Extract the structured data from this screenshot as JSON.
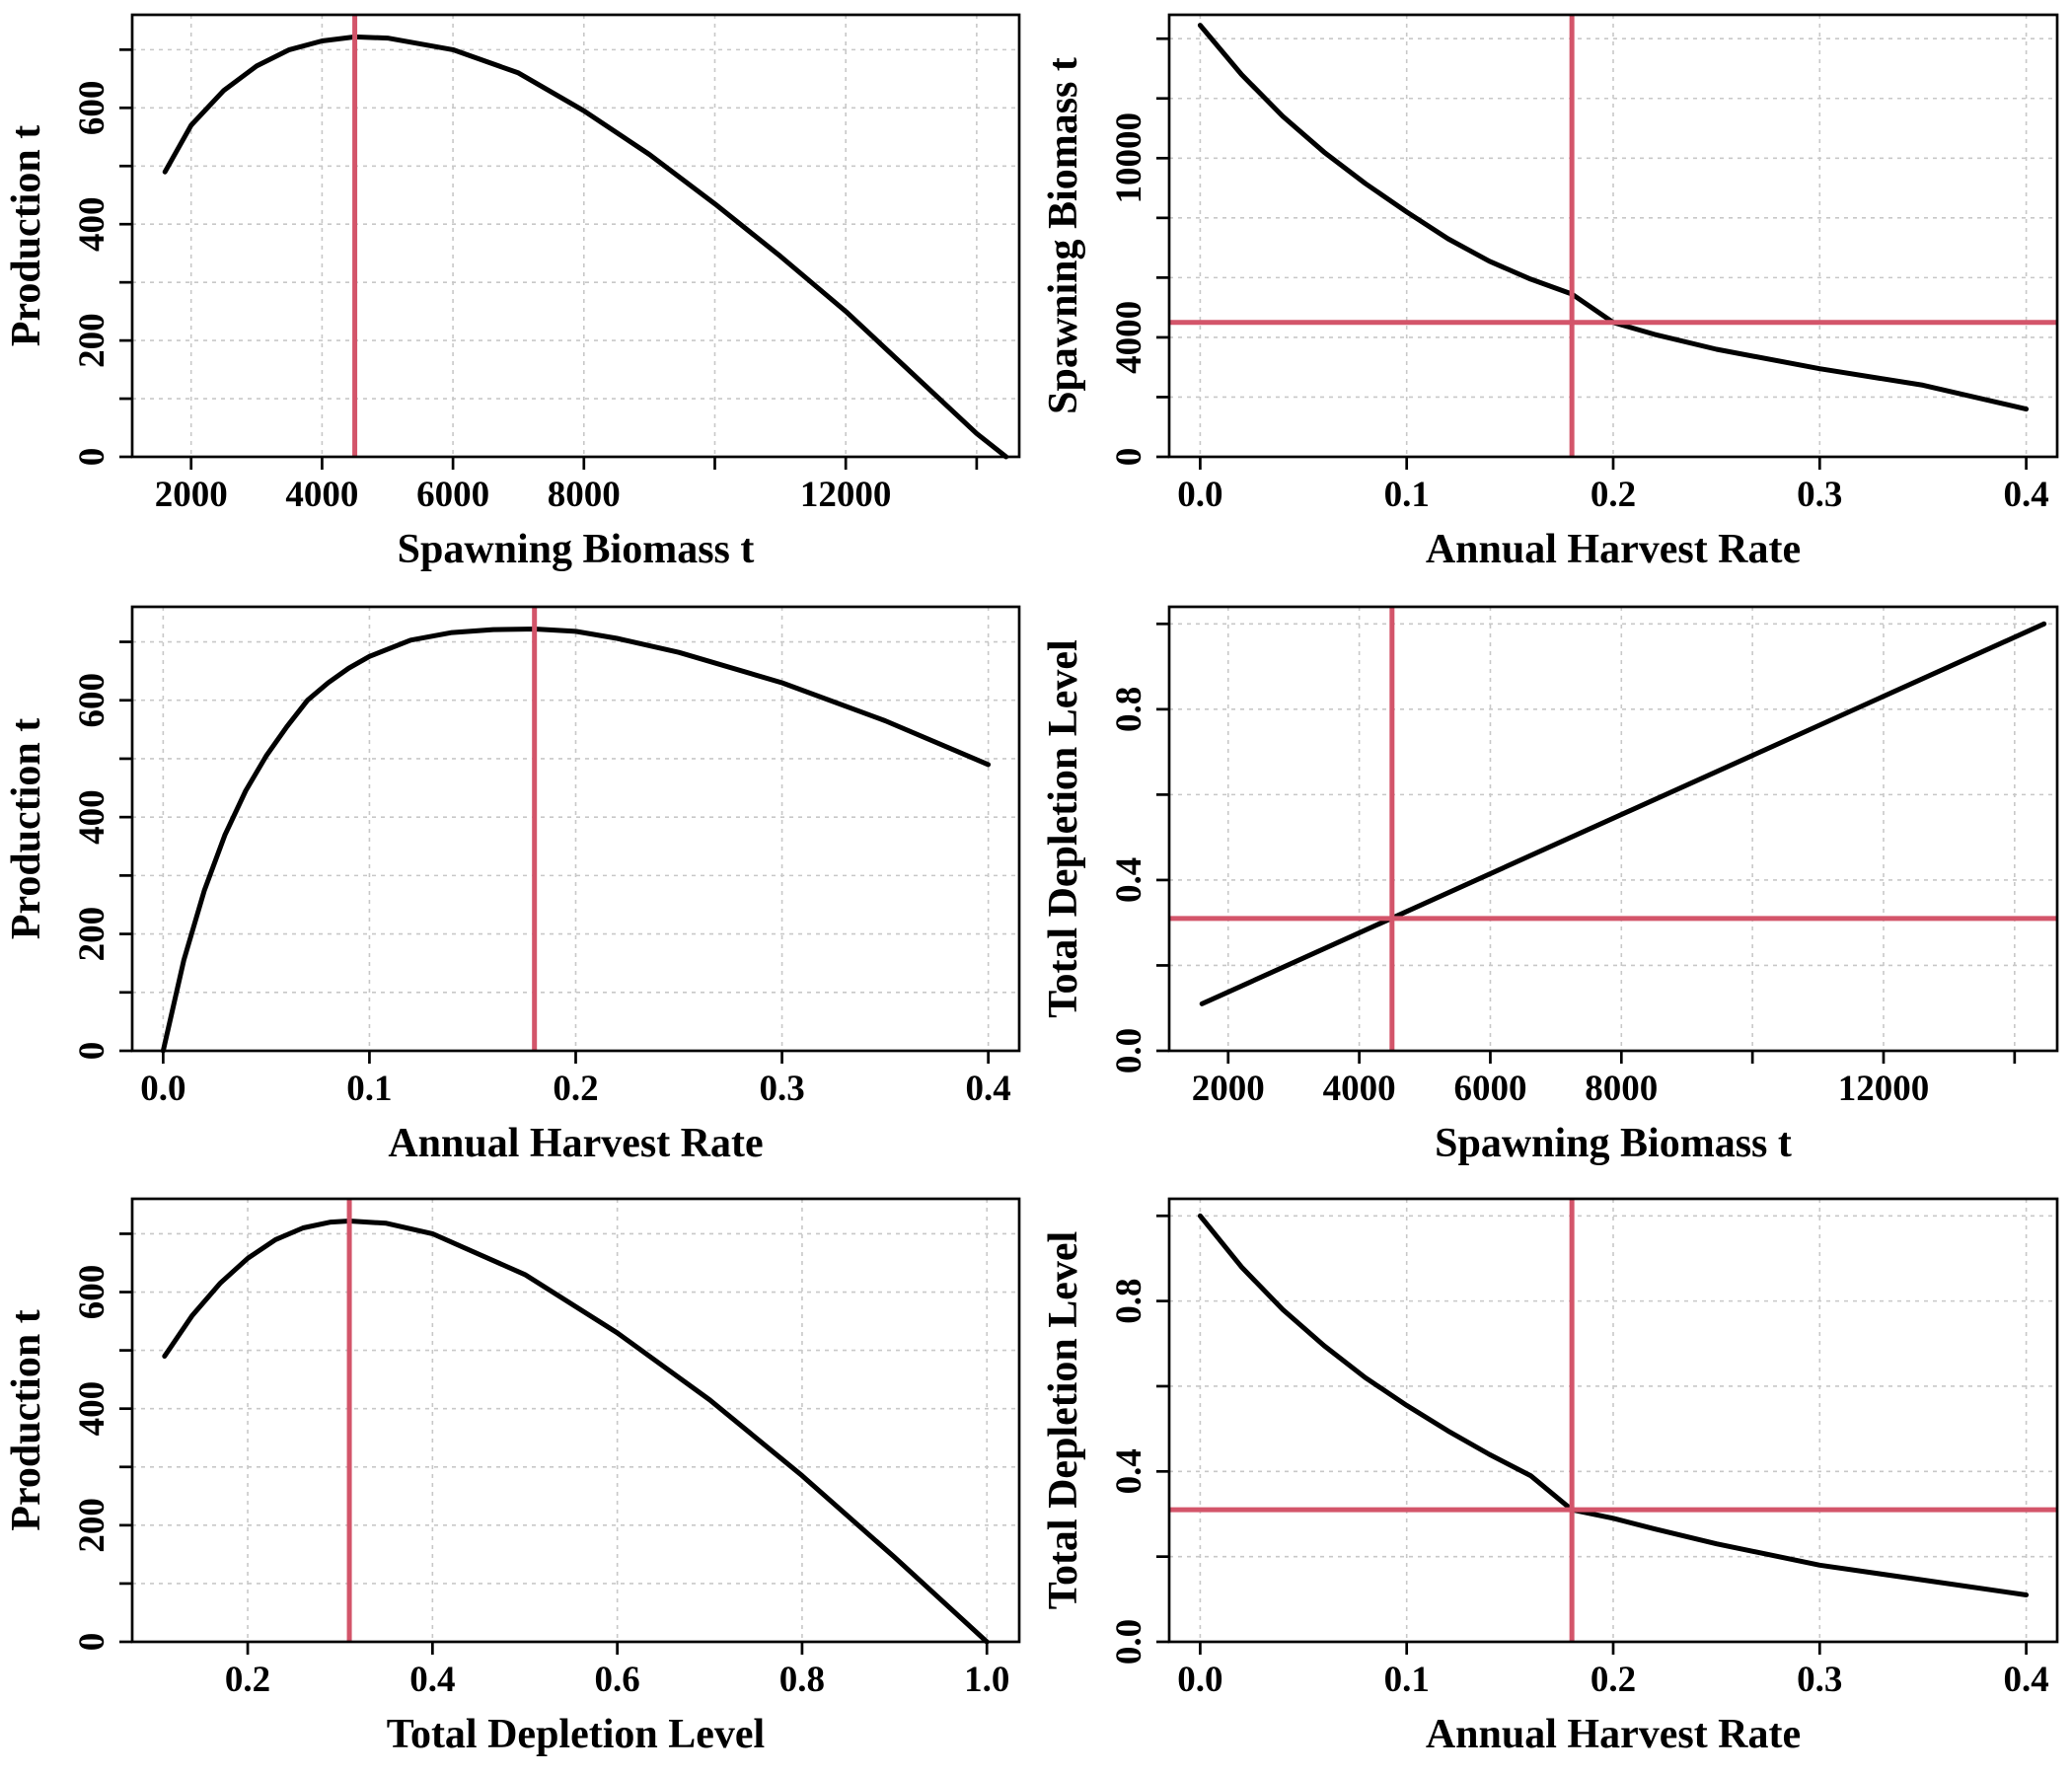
{
  "colors": {
    "curve": "#000000",
    "reference": "#d3556a",
    "grid": "#c8c8c8"
  },
  "chart_data": [
    {
      "id": "p1",
      "type": "line",
      "xlabel": "Spawning Biomass t",
      "ylabel": "Production t",
      "xlim": [
        1100,
        14650
      ],
      "ylim": [
        0,
        760
      ],
      "xticks": [
        2000,
        4000,
        6000,
        8000,
        10000,
        12000,
        14000
      ],
      "xticklabels": [
        "2000",
        "4000",
        "6000",
        "8000",
        "",
        "12000",
        ""
      ],
      "yticks": [
        0,
        200,
        400,
        600
      ],
      "yminor": [
        100,
        300,
        500,
        700
      ],
      "yticklabels": [
        "0",
        "200",
        "400",
        "600"
      ],
      "x": [
        1600,
        2000,
        2500,
        3000,
        3500,
        4000,
        4500,
        5000,
        6000,
        7000,
        8000,
        9000,
        10000,
        11000,
        12000,
        13000,
        14000,
        14450
      ],
      "y": [
        490,
        570,
        630,
        672,
        700,
        715,
        722,
        720,
        700,
        660,
        595,
        520,
        435,
        345,
        250,
        145,
        40,
        0
      ],
      "vline": 4500,
      "hline": null
    },
    {
      "id": "p2",
      "type": "line",
      "xlabel": "Annual Harvest Rate",
      "ylabel": "Spawning Biomass t",
      "xlim": [
        -0.015,
        0.415
      ],
      "ylim": [
        0,
        14800
      ],
      "xticks": [
        0.0,
        0.1,
        0.2,
        0.3,
        0.4
      ],
      "xticklabels": [
        "0.0",
        "0.1",
        "0.2",
        "0.3",
        "0.4"
      ],
      "yticks": [
        0,
        4000,
        10000
      ],
      "yminor": [
        2000,
        6000,
        8000,
        12000,
        14000
      ],
      "yticklabels": [
        "0",
        "4000",
        "10000"
      ],
      "x": [
        0.0,
        0.02,
        0.04,
        0.06,
        0.08,
        0.1,
        0.12,
        0.14,
        0.16,
        0.18,
        0.2,
        0.22,
        0.25,
        0.3,
        0.35,
        0.4
      ],
      "y": [
        14450,
        12800,
        11400,
        10200,
        9150,
        8200,
        7300,
        6550,
        5950,
        5450,
        4500,
        4100,
        3600,
        2950,
        2400,
        1600
      ],
      "vline": 0.18,
      "hline": 4500
    },
    {
      "id": "p3",
      "type": "line",
      "xlabel": "Annual Harvest Rate",
      "ylabel": "Production t",
      "xlim": [
        -0.015,
        0.415
      ],
      "ylim": [
        0,
        760
      ],
      "xticks": [
        0.0,
        0.1,
        0.2,
        0.3,
        0.4
      ],
      "xticklabels": [
        "0.0",
        "0.1",
        "0.2",
        "0.3",
        "0.4"
      ],
      "yticks": [
        0,
        200,
        400,
        600
      ],
      "yminor": [
        100,
        300,
        500,
        700
      ],
      "yticklabels": [
        "0",
        "200",
        "400",
        "600"
      ],
      "x": [
        0.0,
        0.01,
        0.02,
        0.03,
        0.04,
        0.05,
        0.06,
        0.07,
        0.08,
        0.09,
        0.1,
        0.12,
        0.14,
        0.16,
        0.18,
        0.2,
        0.22,
        0.25,
        0.3,
        0.35,
        0.4
      ],
      "y": [
        0,
        155,
        275,
        370,
        445,
        505,
        555,
        600,
        630,
        655,
        675,
        703,
        716,
        721,
        722,
        718,
        706,
        682,
        630,
        565,
        490
      ],
      "vline": 0.18,
      "hline": null
    },
    {
      "id": "p4",
      "type": "line",
      "xlabel": "Spawning Biomass t",
      "ylabel": "Total Depletion Level",
      "xlim": [
        1100,
        14650
      ],
      "ylim": [
        0,
        1.04
      ],
      "xticks": [
        2000,
        4000,
        6000,
        8000,
        10000,
        12000,
        14000
      ],
      "xticklabels": [
        "2000",
        "4000",
        "6000",
        "8000",
        "",
        "12000",
        ""
      ],
      "yticks": [
        0.0,
        0.4,
        0.8
      ],
      "yminor": [
        0.2,
        0.6,
        1.0
      ],
      "yticklabels": [
        "0.0",
        "0.4",
        "0.8"
      ],
      "x": [
        1600,
        14450
      ],
      "y": [
        0.11,
        1.0
      ],
      "vline": 4500,
      "hline": 0.31
    },
    {
      "id": "p5",
      "type": "line",
      "xlabel": "Total Depletion Level",
      "ylabel": "Production t",
      "xlim": [
        0.075,
        1.035
      ],
      "ylim": [
        0,
        760
      ],
      "xticks": [
        0.2,
        0.4,
        0.6,
        0.8,
        1.0
      ],
      "xticklabels": [
        "0.2",
        "0.4",
        "0.6",
        "0.8",
        "1.0"
      ],
      "yticks": [
        0,
        200,
        400,
        600
      ],
      "yminor": [
        100,
        300,
        500,
        700
      ],
      "yticklabels": [
        "0",
        "200",
        "400",
        "600"
      ],
      "x": [
        0.11,
        0.14,
        0.17,
        0.2,
        0.23,
        0.26,
        0.29,
        0.31,
        0.35,
        0.4,
        0.5,
        0.6,
        0.7,
        0.8,
        0.9,
        1.0
      ],
      "y": [
        490,
        560,
        615,
        658,
        690,
        710,
        720,
        722,
        718,
        700,
        630,
        530,
        415,
        285,
        145,
        0
      ],
      "vline": 0.31,
      "hline": null
    },
    {
      "id": "p6",
      "type": "line",
      "xlabel": "Annual Harvest Rate",
      "ylabel": "Total Depletion Level",
      "xlim": [
        -0.015,
        0.415
      ],
      "ylim": [
        0,
        1.04
      ],
      "xticks": [
        0.0,
        0.1,
        0.2,
        0.3,
        0.4
      ],
      "xticklabels": [
        "0.0",
        "0.1",
        "0.2",
        "0.3",
        "0.4"
      ],
      "yticks": [
        0.0,
        0.4,
        0.8
      ],
      "yminor": [
        0.2,
        0.6,
        1.0
      ],
      "yticklabels": [
        "0.0",
        "0.4",
        "0.8"
      ],
      "x": [
        0.0,
        0.02,
        0.04,
        0.06,
        0.08,
        0.1,
        0.12,
        0.14,
        0.16,
        0.18,
        0.2,
        0.22,
        0.25,
        0.3,
        0.35,
        0.4
      ],
      "y": [
        1.0,
        0.88,
        0.78,
        0.695,
        0.62,
        0.555,
        0.495,
        0.44,
        0.39,
        0.31,
        0.29,
        0.265,
        0.23,
        0.18,
        0.145,
        0.11
      ],
      "vline": 0.18,
      "hline": 0.31
    }
  ]
}
